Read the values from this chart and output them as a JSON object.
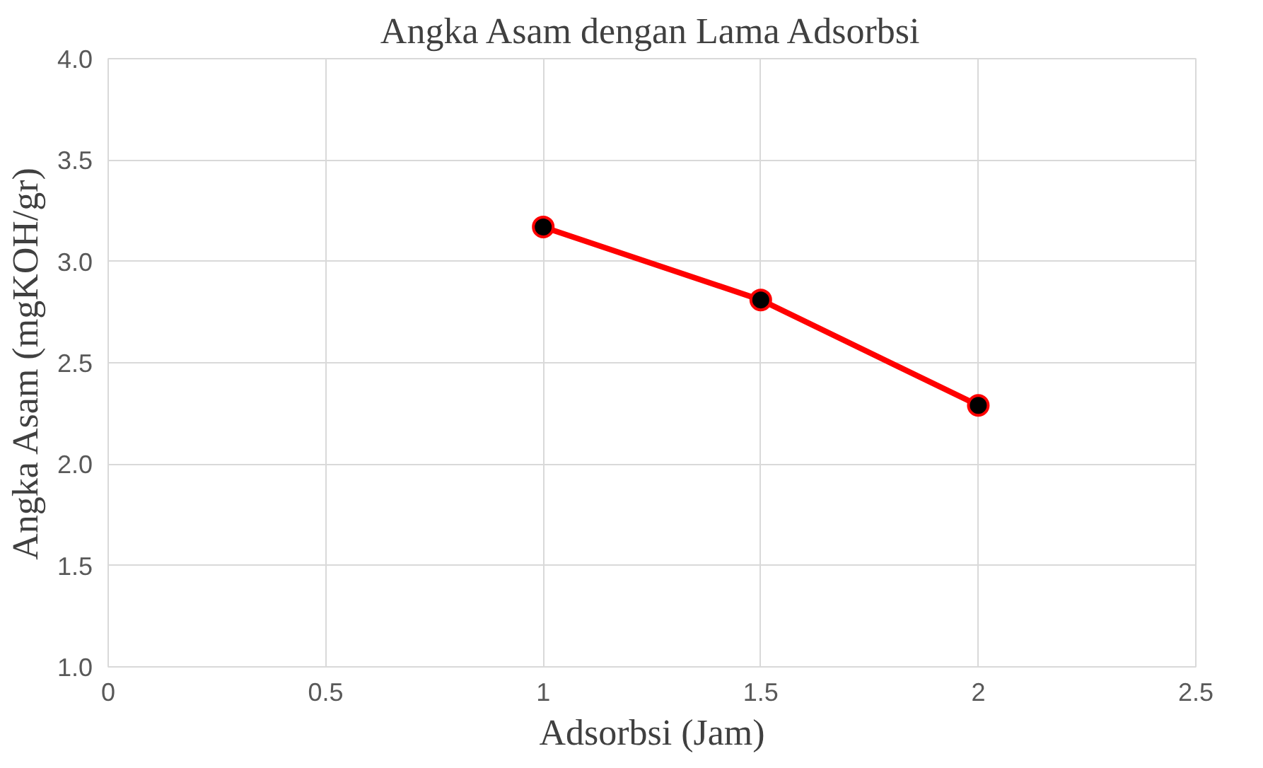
{
  "chart_data": {
    "type": "line",
    "title": "Angka Asam dengan Lama Adsorbsi",
    "xlabel": "Adsorbsi (Jam)",
    "ylabel": "Angka Asam (mgKOH/gr)",
    "x": [
      1,
      1.5,
      2
    ],
    "series": [
      {
        "color": "#ff0000",
        "values": [
          3.17,
          2.81,
          2.29
        ]
      }
    ],
    "xlim": [
      0,
      2.5
    ],
    "xticks": [
      0,
      0.5,
      1,
      1.5,
      2,
      2.5
    ],
    "ylim": [
      1.0,
      4.0
    ],
    "yticks": [
      {
        "value": 1.0,
        "label": "1.0"
      },
      {
        "value": 1.5,
        "label": "1.5"
      },
      {
        "value": 2.0,
        "label": "2.0"
      },
      {
        "value": 2.5,
        "label": "2.5"
      },
      {
        "value": 3.0,
        "label": "3.0"
      },
      {
        "value": 3.5,
        "label": "3.5"
      },
      {
        "value": 4.0,
        "label": "4.0"
      }
    ],
    "grid": true,
    "marker": "circle",
    "line_style": "solid"
  }
}
